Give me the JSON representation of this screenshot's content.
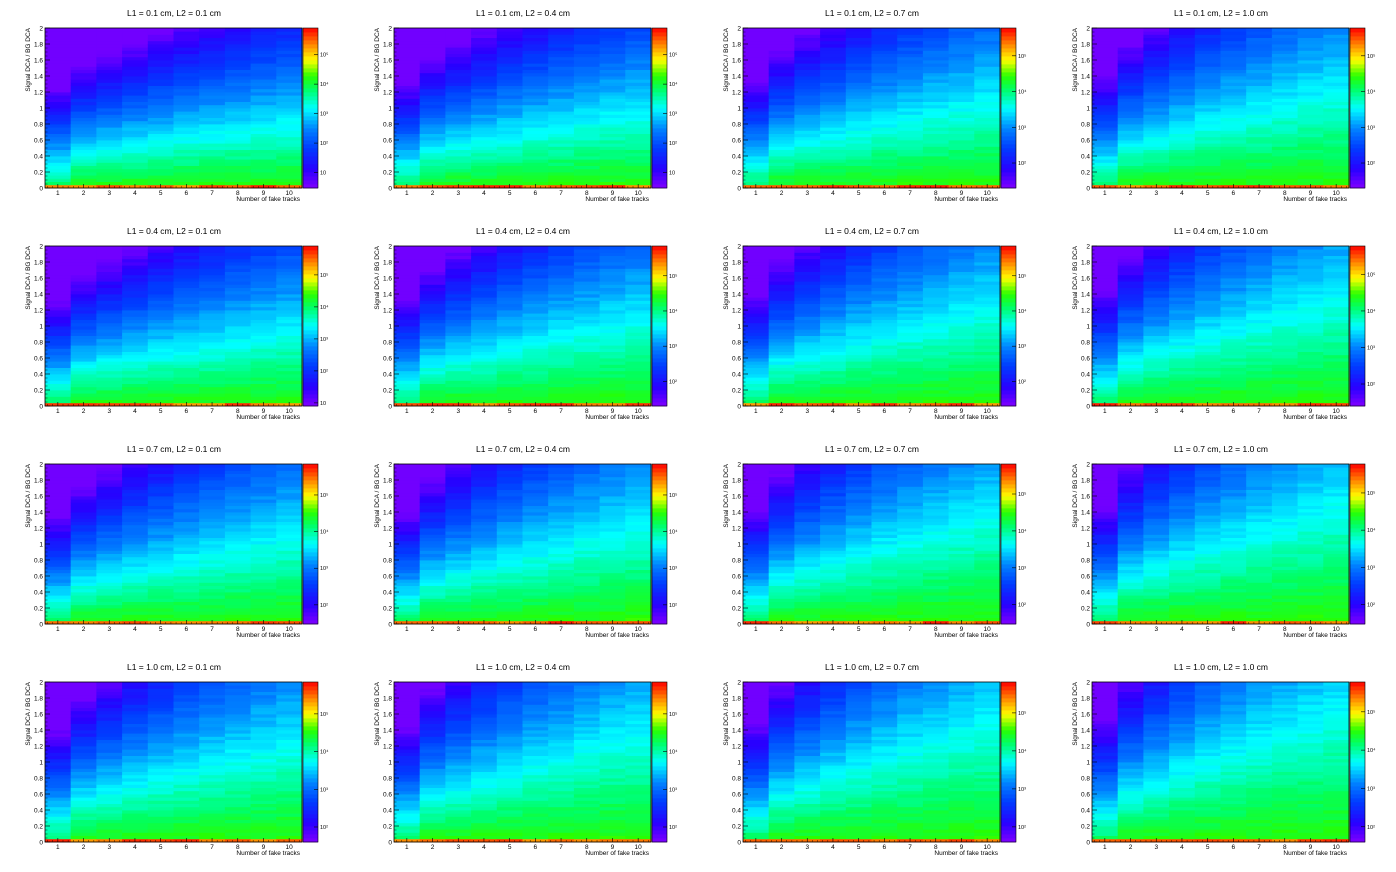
{
  "chart_data": [
    {
      "type": "heatmap",
      "title": "L1 = 0.1 cm, L2 = 0.1 cm",
      "xlabel": "Number of fake tracks",
      "ylabel": "Signal DCA / BG DCA",
      "xlim": [
        0.5,
        10.5
      ],
      "ylim": [
        0,
        2
      ],
      "x_ticks": [
        1,
        2,
        3,
        4,
        5,
        6,
        7,
        8,
        9,
        10
      ],
      "y_ticks": [
        0,
        0.2,
        0.4,
        0.6,
        0.8,
        1,
        1.2,
        1.4,
        1.6,
        1.8,
        2
      ],
      "z_scale": "log",
      "z_ticks": [
        {
          "value": 10,
          "label": "10"
        },
        {
          "value": 100,
          "label": "10²"
        },
        {
          "value": 1000,
          "label": "10³"
        },
        {
          "value": 10000,
          "label": "10⁴"
        },
        {
          "value": 100000,
          "label": "10⁵"
        }
      ],
      "zlim": [
        3,
        800000
      ]
    },
    {
      "type": "heatmap",
      "title": "L1 = 0.1 cm, L2 = 0.4 cm",
      "xlabel": "Number of fake tracks",
      "ylabel": "Signal DCA / BG DCA",
      "xlim": [
        0.5,
        10.5
      ],
      "ylim": [
        0,
        2
      ],
      "x_ticks": [
        1,
        2,
        3,
        4,
        5,
        6,
        7,
        8,
        9,
        10
      ],
      "y_ticks": [
        0,
        0.2,
        0.4,
        0.6,
        0.8,
        1,
        1.2,
        1.4,
        1.6,
        1.8,
        2
      ],
      "z_scale": "log",
      "z_ticks": [
        {
          "value": 10,
          "label": "10"
        },
        {
          "value": 100,
          "label": "10²"
        },
        {
          "value": 1000,
          "label": "10³"
        },
        {
          "value": 10000,
          "label": "10⁴"
        },
        {
          "value": 100000,
          "label": "10⁵"
        }
      ],
      "zlim": [
        3,
        800000
      ]
    },
    {
      "type": "heatmap",
      "title": "L1 = 0.1 cm, L2 = 0.7 cm",
      "xlabel": "Number of fake tracks",
      "ylabel": "Signal DCA / BG DCA",
      "xlim": [
        0.5,
        10.5
      ],
      "ylim": [
        0,
        2
      ],
      "x_ticks": [
        1,
        2,
        3,
        4,
        5,
        6,
        7,
        8,
        9,
        10
      ],
      "y_ticks": [
        0,
        0.2,
        0.4,
        0.6,
        0.8,
        1,
        1.2,
        1.4,
        1.6,
        1.8,
        2
      ],
      "z_scale": "log",
      "z_ticks": [
        {
          "value": 100,
          "label": "10²"
        },
        {
          "value": 1000,
          "label": "10³"
        },
        {
          "value": 10000,
          "label": "10⁴"
        },
        {
          "value": 100000,
          "label": "10⁵"
        }
      ],
      "zlim": [
        20,
        600000
      ]
    },
    {
      "type": "heatmap",
      "title": "L1 = 0.1 cm, L2 = 1.0 cm",
      "xlabel": "Number of fake tracks",
      "ylabel": "Signal DCA / BG DCA",
      "xlim": [
        0.5,
        10.5
      ],
      "ylim": [
        0,
        2
      ],
      "x_ticks": [
        1,
        2,
        3,
        4,
        5,
        6,
        7,
        8,
        9,
        10
      ],
      "y_ticks": [
        0,
        0.2,
        0.4,
        0.6,
        0.8,
        1,
        1.2,
        1.4,
        1.6,
        1.8,
        2
      ],
      "z_scale": "log",
      "z_ticks": [
        {
          "value": 100,
          "label": "10²"
        },
        {
          "value": 1000,
          "label": "10³"
        },
        {
          "value": 10000,
          "label": "10⁴"
        },
        {
          "value": 100000,
          "label": "10⁵"
        }
      ],
      "zlim": [
        20,
        600000
      ]
    },
    {
      "type": "heatmap",
      "title": "L1 = 0.4 cm, L2 = 0.1 cm",
      "xlabel": "Number of fake tracks",
      "ylabel": "Signal DCA / BG DCA",
      "xlim": [
        0.5,
        10.5
      ],
      "ylim": [
        0,
        2
      ],
      "x_ticks": [
        1,
        2,
        3,
        4,
        5,
        6,
        7,
        8,
        9,
        10
      ],
      "y_ticks": [
        0,
        0.2,
        0.4,
        0.6,
        0.8,
        1,
        1.2,
        1.4,
        1.6,
        1.8,
        2
      ],
      "z_scale": "log",
      "z_ticks": [
        {
          "value": 10,
          "label": "10"
        },
        {
          "value": 100,
          "label": "10²"
        },
        {
          "value": 1000,
          "label": "10³"
        },
        {
          "value": 10000,
          "label": "10⁴"
        },
        {
          "value": 100000,
          "label": "10⁵"
        }
      ],
      "zlim": [
        8,
        800000
      ]
    },
    {
      "type": "heatmap",
      "title": "L1 = 0.4 cm, L2 = 0.4 cm",
      "xlabel": "Number of fake tracks",
      "ylabel": "Signal DCA / BG DCA",
      "xlim": [
        0.5,
        10.5
      ],
      "ylim": [
        0,
        2
      ],
      "x_ticks": [
        1,
        2,
        3,
        4,
        5,
        6,
        7,
        8,
        9,
        10
      ],
      "y_ticks": [
        0,
        0.2,
        0.4,
        0.6,
        0.8,
        1,
        1.2,
        1.4,
        1.6,
        1.8,
        2
      ],
      "z_scale": "log",
      "z_ticks": [
        {
          "value": 100,
          "label": "10²"
        },
        {
          "value": 1000,
          "label": "10³"
        },
        {
          "value": 10000,
          "label": "10⁴"
        },
        {
          "value": 100000,
          "label": "10⁵"
        }
      ],
      "zlim": [
        20,
        700000
      ]
    },
    {
      "type": "heatmap",
      "title": "L1 = 0.4 cm, L2 = 0.7 cm",
      "xlabel": "Number of fake tracks",
      "ylabel": "Signal DCA / BG DCA",
      "xlim": [
        0.5,
        10.5
      ],
      "ylim": [
        0,
        2
      ],
      "x_ticks": [
        1,
        2,
        3,
        4,
        5,
        6,
        7,
        8,
        9,
        10
      ],
      "y_ticks": [
        0,
        0.2,
        0.4,
        0.6,
        0.8,
        1,
        1.2,
        1.4,
        1.6,
        1.8,
        2
      ],
      "z_scale": "log",
      "z_ticks": [
        {
          "value": 100,
          "label": "10²"
        },
        {
          "value": 1000,
          "label": "10³"
        },
        {
          "value": 10000,
          "label": "10⁴"
        },
        {
          "value": 100000,
          "label": "10⁵"
        }
      ],
      "zlim": [
        20,
        700000
      ]
    },
    {
      "type": "heatmap",
      "title": "L1 = 0.4 cm, L2 = 1.0 cm",
      "xlabel": "Number of fake tracks",
      "ylabel": "Signal DCA / BG DCA",
      "xlim": [
        0.5,
        10.5
      ],
      "ylim": [
        0,
        2
      ],
      "x_ticks": [
        1,
        2,
        3,
        4,
        5,
        6,
        7,
        8,
        9,
        10
      ],
      "y_ticks": [
        0,
        0.2,
        0.4,
        0.6,
        0.8,
        1,
        1.2,
        1.4,
        1.6,
        1.8,
        2
      ],
      "z_scale": "log",
      "z_ticks": [
        {
          "value": 100,
          "label": "10²"
        },
        {
          "value": 1000,
          "label": "10³"
        },
        {
          "value": 10000,
          "label": "10⁴"
        },
        {
          "value": 100000,
          "label": "10⁵"
        }
      ],
      "zlim": [
        25,
        600000
      ]
    },
    {
      "type": "heatmap",
      "title": "L1 = 0.7 cm, L2 = 0.1 cm",
      "xlabel": "Number of fake tracks",
      "ylabel": "Signal DCA / BG DCA",
      "xlim": [
        0.5,
        10.5
      ],
      "ylim": [
        0,
        2
      ],
      "x_ticks": [
        1,
        2,
        3,
        4,
        5,
        6,
        7,
        8,
        9,
        10
      ],
      "y_ticks": [
        0,
        0.2,
        0.4,
        0.6,
        0.8,
        1,
        1.2,
        1.4,
        1.6,
        1.8,
        2
      ],
      "z_scale": "log",
      "z_ticks": [
        {
          "value": 100,
          "label": "10²"
        },
        {
          "value": 1000,
          "label": "10³"
        },
        {
          "value": 10000,
          "label": "10⁴"
        },
        {
          "value": 100000,
          "label": "10⁵"
        }
      ],
      "zlim": [
        30,
        700000
      ]
    },
    {
      "type": "heatmap",
      "title": "L1 = 0.7 cm, L2 = 0.4 cm",
      "xlabel": "Number of fake tracks",
      "ylabel": "Signal DCA / BG DCA",
      "xlim": [
        0.5,
        10.5
      ],
      "ylim": [
        0,
        2
      ],
      "x_ticks": [
        1,
        2,
        3,
        4,
        5,
        6,
        7,
        8,
        9,
        10
      ],
      "y_ticks": [
        0,
        0.2,
        0.4,
        0.6,
        0.8,
        1,
        1.2,
        1.4,
        1.6,
        1.8,
        2
      ],
      "z_scale": "log",
      "z_ticks": [
        {
          "value": 100,
          "label": "10²"
        },
        {
          "value": 1000,
          "label": "10³"
        },
        {
          "value": 10000,
          "label": "10⁴"
        },
        {
          "value": 100000,
          "label": "10⁵"
        }
      ],
      "zlim": [
        30,
        700000
      ]
    },
    {
      "type": "heatmap",
      "title": "L1 = 0.7 cm, L2 = 0.7 cm",
      "xlabel": "Number of fake tracks",
      "ylabel": "Signal DCA / BG DCA",
      "xlim": [
        0.5,
        10.5
      ],
      "ylim": [
        0,
        2
      ],
      "x_ticks": [
        1,
        2,
        3,
        4,
        5,
        6,
        7,
        8,
        9,
        10
      ],
      "y_ticks": [
        0,
        0.2,
        0.4,
        0.6,
        0.8,
        1,
        1.2,
        1.4,
        1.6,
        1.8,
        2
      ],
      "z_scale": "log",
      "z_ticks": [
        {
          "value": 100,
          "label": "10²"
        },
        {
          "value": 1000,
          "label": "10³"
        },
        {
          "value": 10000,
          "label": "10⁴"
        },
        {
          "value": 100000,
          "label": "10⁵"
        }
      ],
      "zlim": [
        30,
        650000
      ]
    },
    {
      "type": "heatmap",
      "title": "L1 = 0.7 cm, L2 = 1.0 cm",
      "xlabel": "Number of fake tracks",
      "ylabel": "Signal DCA / BG DCA",
      "xlim": [
        0.5,
        10.5
      ],
      "ylim": [
        0,
        2
      ],
      "x_ticks": [
        1,
        2,
        3,
        4,
        5,
        6,
        7,
        8,
        9,
        10
      ],
      "y_ticks": [
        0,
        0.2,
        0.4,
        0.6,
        0.8,
        1,
        1.2,
        1.4,
        1.6,
        1.8,
        2
      ],
      "z_scale": "log",
      "z_ticks": [
        {
          "value": 100,
          "label": "10²"
        },
        {
          "value": 1000,
          "label": "10³"
        },
        {
          "value": 10000,
          "label": "10⁴"
        },
        {
          "value": 100000,
          "label": "10⁵"
        }
      ],
      "zlim": [
        30,
        600000
      ]
    },
    {
      "type": "heatmap",
      "title": "L1 = 1.0 cm, L2 = 0.1 cm",
      "xlabel": "Number of fake tracks",
      "ylabel": "Signal DCA / BG DCA",
      "xlim": [
        0.5,
        10.5
      ],
      "ylim": [
        0,
        2
      ],
      "x_ticks": [
        1,
        2,
        3,
        4,
        5,
        6,
        7,
        8,
        9,
        10
      ],
      "y_ticks": [
        0,
        0.2,
        0.4,
        0.6,
        0.8,
        1,
        1.2,
        1.4,
        1.6,
        1.8,
        2
      ],
      "z_scale": "log",
      "z_ticks": [
        {
          "value": 100,
          "label": "10²"
        },
        {
          "value": 1000,
          "label": "10³"
        },
        {
          "value": 10000,
          "label": "10⁴"
        },
        {
          "value": 100000,
          "label": "10⁵"
        }
      ],
      "zlim": [
        40,
        700000
      ]
    },
    {
      "type": "heatmap",
      "title": "L1 = 1.0 cm, L2 = 0.4 cm",
      "xlabel": "Number of fake tracks",
      "ylabel": "Signal DCA / BG DCA",
      "xlim": [
        0.5,
        10.5
      ],
      "ylim": [
        0,
        2
      ],
      "x_ticks": [
        1,
        2,
        3,
        4,
        5,
        6,
        7,
        8,
        9,
        10
      ],
      "y_ticks": [
        0,
        0.2,
        0.4,
        0.6,
        0.8,
        1,
        1.2,
        1.4,
        1.6,
        1.8,
        2
      ],
      "z_scale": "log",
      "z_ticks": [
        {
          "value": 100,
          "label": "10²"
        },
        {
          "value": 1000,
          "label": "10³"
        },
        {
          "value": 10000,
          "label": "10⁴"
        },
        {
          "value": 100000,
          "label": "10⁵"
        }
      ],
      "zlim": [
        40,
        700000
      ]
    },
    {
      "type": "heatmap",
      "title": "L1 = 1.0 cm, L2 = 0.7 cm",
      "xlabel": "Number of fake tracks",
      "ylabel": "Signal DCA / BG DCA",
      "xlim": [
        0.5,
        10.5
      ],
      "ylim": [
        0,
        2
      ],
      "x_ticks": [
        1,
        2,
        3,
        4,
        5,
        6,
        7,
        8,
        9,
        10
      ],
      "y_ticks": [
        0,
        0.2,
        0.4,
        0.6,
        0.8,
        1,
        1.2,
        1.4,
        1.6,
        1.8,
        2
      ],
      "z_scale": "log",
      "z_ticks": [
        {
          "value": 100,
          "label": "10²"
        },
        {
          "value": 1000,
          "label": "10³"
        },
        {
          "value": 10000,
          "label": "10⁴"
        },
        {
          "value": 100000,
          "label": "10⁵"
        }
      ],
      "zlim": [
        40,
        650000
      ]
    },
    {
      "type": "heatmap",
      "title": "L1 = 1.0 cm, L2 = 1.0 cm",
      "xlabel": "Number of fake tracks",
      "ylabel": "Signal DCA / BG DCA",
      "xlim": [
        0.5,
        10.5
      ],
      "ylim": [
        0,
        2
      ],
      "x_ticks": [
        1,
        2,
        3,
        4,
        5,
        6,
        7,
        8,
        9,
        10
      ],
      "y_ticks": [
        0,
        0.2,
        0.4,
        0.6,
        0.8,
        1,
        1.2,
        1.4,
        1.6,
        1.8,
        2
      ],
      "z_scale": "log",
      "z_ticks": [
        {
          "value": 100,
          "label": "10²"
        },
        {
          "value": 1000,
          "label": "10³"
        },
        {
          "value": 10000,
          "label": "10⁴"
        },
        {
          "value": 100000,
          "label": "10⁵"
        }
      ],
      "zlim": [
        40,
        600000
      ]
    }
  ]
}
